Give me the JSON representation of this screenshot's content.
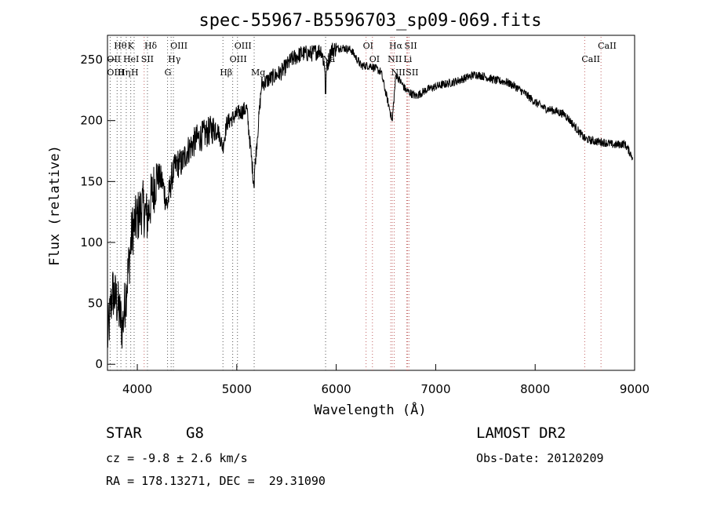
{
  "chart_data": {
    "type": "line",
    "title": "spec-55967-B5596703_sp09-069.fits",
    "xlabel": "Wavelength (Å)",
    "ylabel": "Flux (relative)",
    "xlim": [
      3700,
      9000
    ],
    "ylim": [
      -5,
      270
    ],
    "x_ticks": [
      4000,
      5000,
      6000,
      7000,
      8000,
      9000
    ],
    "y_ticks": [
      0,
      50,
      100,
      150,
      200,
      250
    ],
    "series": [
      {
        "x": [
          3700,
          3750,
          3800,
          3850,
          3900,
          3950,
          4000,
          4050,
          4100,
          4150,
          4200,
          4250,
          4300,
          4350,
          4400,
          4450,
          4500,
          4600,
          4700,
          4800,
          4860,
          4900,
          5000,
          5100,
          5170,
          5250,
          5350,
          5450,
          5550,
          5650,
          5750,
          5850,
          5893,
          5950,
          6050,
          6150,
          6250,
          6350,
          6450,
          6563,
          6600,
          6700,
          6800,
          6900,
          7000,
          7100,
          7200,
          7300,
          7400,
          7500,
          7600,
          7700,
          7800,
          7900,
          8000,
          8100,
          8200,
          8300,
          8400,
          8500,
          8600,
          8700,
          8800,
          8900,
          8980
        ],
        "y": [
          20,
          60,
          50,
          30,
          70,
          110,
          120,
          130,
          120,
          140,
          155,
          150,
          130,
          155,
          165,
          165,
          175,
          185,
          190,
          195,
          178,
          198,
          205,
          210,
          150,
          230,
          235,
          240,
          250,
          255,
          255,
          258,
          240,
          258,
          260,
          258,
          245,
          245,
          240,
          200,
          238,
          225,
          220,
          225,
          228,
          230,
          232,
          235,
          238,
          236,
          233,
          232,
          228,
          222,
          215,
          210,
          208,
          205,
          195,
          185,
          183,
          182,
          180,
          181,
          170
        ]
      }
    ],
    "spectral_lines": [
      {
        "label": "Hθ",
        "x": 3797
      },
      {
        "label": "K",
        "x": 3934
      },
      {
        "label": "Hδ",
        "x": 4102
      },
      {
        "label": "OII",
        "x": 3727
      },
      {
        "label": "HeI",
        "x": 3889
      },
      {
        "label": "SII",
        "x": 4069
      },
      {
        "label": "OIII",
        "x": 3727
      },
      {
        "label": "Hη",
        "x": 3835
      },
      {
        "label": "H",
        "x": 3968
      },
      {
        "label": "OIII",
        "x": 4363
      },
      {
        "label": "Hγ",
        "x": 4340
      },
      {
        "label": "G",
        "x": 4304
      },
      {
        "label": "OIII",
        "x": 5007
      },
      {
        "label": "OIII",
        "x": 4959
      },
      {
        "label": "Hβ",
        "x": 4861
      },
      {
        "label": "Mg",
        "x": 5175
      },
      {
        "label": "Na",
        "x": 5893
      },
      {
        "label": "OI",
        "x": 6300
      },
      {
        "label": "OI",
        "x": 6364
      },
      {
        "label": "Hα",
        "x": 6563
      },
      {
        "label": "SII",
        "x": 6717
      },
      {
        "label": "NII",
        "x": 6548
      },
      {
        "label": "Li",
        "x": 6708
      },
      {
        "label": "NII",
        "x": 6583
      },
      {
        "label": "SII",
        "x": 6731
      },
      {
        "label": "CaII",
        "x": 8662
      },
      {
        "label": "CaII",
        "x": 8498
      }
    ]
  },
  "info": {
    "class": "STAR",
    "subclass": "G8",
    "survey": "LAMOST DR2",
    "cz": "cz = -9.8 ± 2.6 km/s",
    "obs_date": "Obs-Date: 20120209",
    "radec": "RA = 178.13271, DEC =  29.31090"
  }
}
